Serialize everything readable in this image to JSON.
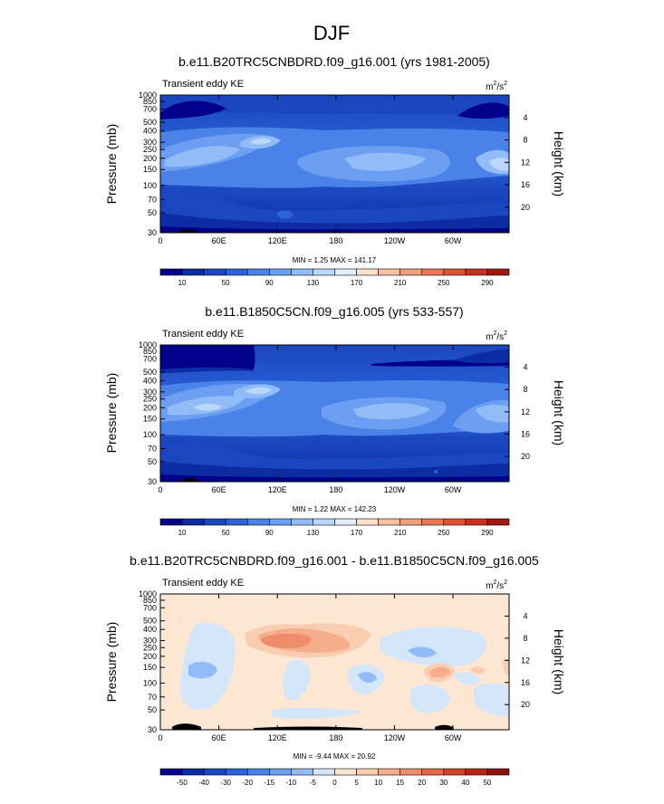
{
  "figure_title": "DJF",
  "chart_data": [
    {
      "type": "heatmap",
      "title": "b.e11.B20TRC5CNBDRD.f09_g16.001 (yrs 1981-2005)",
      "left_string": "Transient eddy KE",
      "units_base": "m",
      "units_exp1": "2",
      "units_mid": "/s",
      "units_exp2": "2",
      "ylabel": "Pressure (mb)",
      "y2label": "Height (km)",
      "xticks": [
        "0",
        "60E",
        "120E",
        "180",
        "120W",
        "60W"
      ],
      "xlim": [
        0,
        357.5
      ],
      "yticks": [
        "30",
        "50",
        "70",
        "100",
        "150",
        "200",
        "250",
        "300",
        "400",
        "500",
        "700",
        "850",
        "1000"
      ],
      "ylim": [
        30,
        1000
      ],
      "y2ticks": [
        "20",
        "16",
        "12",
        "8",
        "4"
      ],
      "stats": "MIN =   1.25  MAX = 141.17",
      "min": 1.25,
      "max": 141.17,
      "colorbar_labels": [
        "10",
        "50",
        "90",
        "130",
        "170",
        "210",
        "250",
        "290"
      ],
      "colorbar_levels": [
        10,
        30,
        50,
        70,
        90,
        110,
        130,
        150,
        170,
        190,
        210,
        230,
        250,
        270,
        290
      ],
      "colorbar_colors": [
        "#00008c",
        "#0d2ca2",
        "#1a47c0",
        "#2d63d9",
        "#4a82e8",
        "#6c9ff2",
        "#92bcf8",
        "#bad6fb",
        "#e4eefb",
        "#fce2cc",
        "#f8c1a2",
        "#f39f7b",
        "#e97a55",
        "#dc5434",
        "#c8301c",
        "#a0180e"
      ]
    },
    {
      "type": "heatmap",
      "title": "b.e11.B1850C5CN.f09_g16.005 (yrs 533-557)",
      "left_string": "Transient eddy KE",
      "units_base": "m",
      "units_exp1": "2",
      "units_mid": "/s",
      "units_exp2": "2",
      "ylabel": "Pressure (mb)",
      "y2label": "Height (km)",
      "xticks": [
        "0",
        "60E",
        "120E",
        "180",
        "120W",
        "60W"
      ],
      "xlim": [
        0,
        357.5
      ],
      "yticks": [
        "30",
        "50",
        "70",
        "100",
        "150",
        "200",
        "250",
        "300",
        "400",
        "500",
        "700",
        "850",
        "1000"
      ],
      "ylim": [
        30,
        1000
      ],
      "y2ticks": [
        "20",
        "16",
        "12",
        "8",
        "4"
      ],
      "stats": "MIN =   1.22  MAX = 142.23",
      "min": 1.22,
      "max": 142.23,
      "colorbar_labels": [
        "10",
        "50",
        "90",
        "130",
        "170",
        "210",
        "250",
        "290"
      ],
      "colorbar_levels": [
        10,
        30,
        50,
        70,
        90,
        110,
        130,
        150,
        170,
        190,
        210,
        230,
        250,
        270,
        290
      ],
      "colorbar_colors": [
        "#00008c",
        "#0d2ca2",
        "#1a47c0",
        "#2d63d9",
        "#4a82e8",
        "#6c9ff2",
        "#92bcf8",
        "#bad6fb",
        "#e4eefb",
        "#fce2cc",
        "#f8c1a2",
        "#f39f7b",
        "#e97a55",
        "#dc5434",
        "#c8301c",
        "#a0180e"
      ]
    },
    {
      "type": "heatmap",
      "title": "b.e11.B20TRC5CNBDRD.f09_g16.001 - b.e11.B1850C5CN.f09_g16.005",
      "left_string": "Transient eddy KE",
      "units_base": "m",
      "units_exp1": "2",
      "units_mid": "/s",
      "units_exp2": "2",
      "ylabel": "Pressure (mb)",
      "y2label": "Height (km)",
      "xticks": [
        "0",
        "60E",
        "120E",
        "180",
        "120W",
        "60W"
      ],
      "xlim": [
        0,
        357.5
      ],
      "yticks": [
        "30",
        "50",
        "70",
        "100",
        "150",
        "200",
        "250",
        "300",
        "400",
        "500",
        "700",
        "850",
        "1000"
      ],
      "ylim": [
        30,
        1000
      ],
      "y2ticks": [
        "20",
        "16",
        "12",
        "8",
        "4"
      ],
      "stats": "MIN =  -9.44  MAX =  20.92",
      "min": -9.44,
      "max": 20.92,
      "colorbar_labels": [
        "-50",
        "-40",
        "-30",
        "-20",
        "-15",
        "-10",
        "-5",
        "0",
        "5",
        "10",
        "15",
        "20",
        "30",
        "40",
        "50"
      ],
      "colorbar_levels": [
        -50,
        -40,
        -30,
        -20,
        -15,
        -10,
        -5,
        0,
        5,
        10,
        15,
        20,
        30,
        40,
        50
      ],
      "colorbar_colors": [
        "#00008c",
        "#0d2ca2",
        "#1a47c0",
        "#2d63d9",
        "#4a82e8",
        "#6c9ff2",
        "#92bcf8",
        "#d4e6fa",
        "#fde6d2",
        "#f9cdb0",
        "#f5ae8c",
        "#ef8c69",
        "#e46746",
        "#d2432a",
        "#b82517",
        "#8e0e0a"
      ]
    }
  ]
}
